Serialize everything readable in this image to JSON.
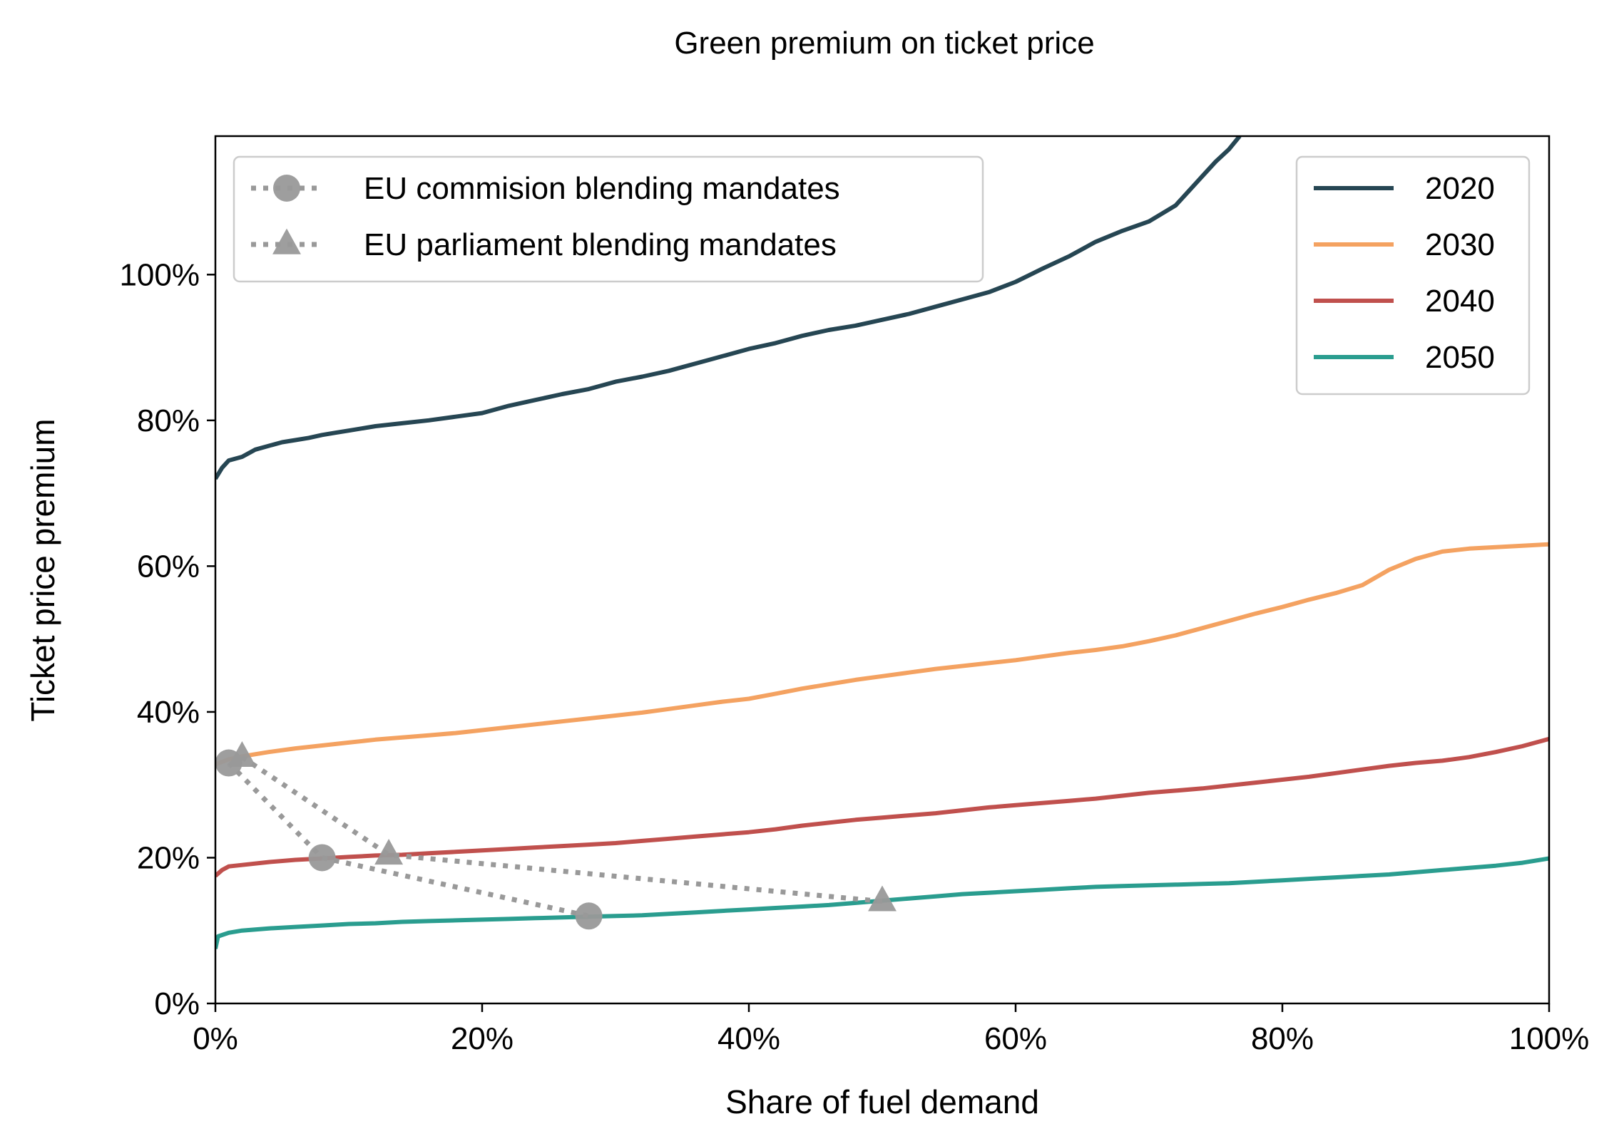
{
  "chart_data": {
    "type": "line",
    "title": "Green premium on ticket price",
    "xlabel": "Share of fuel demand",
    "ylabel": "Ticket price premium",
    "xlim": [
      0,
      100
    ],
    "ylim": [
      0,
      119
    ],
    "x_unit": "%",
    "y_unit": "%",
    "xticks": [
      0,
      20,
      40,
      60,
      80,
      100
    ],
    "yticks": [
      0,
      20,
      40,
      60,
      80,
      100
    ],
    "xtick_labels": [
      "0%",
      "20%",
      "40%",
      "60%",
      "80%",
      "100%"
    ],
    "ytick_labels": [
      "0%",
      "20%",
      "40%",
      "60%",
      "80%",
      "100%"
    ],
    "grid": false,
    "series": [
      {
        "name": "2020",
        "color": "#264653",
        "style": "solid",
        "points": [
          [
            0,
            72
          ],
          [
            0.5,
            73.5
          ],
          [
            1,
            74.5
          ],
          [
            2,
            75
          ],
          [
            3,
            76
          ],
          [
            4,
            76.5
          ],
          [
            5,
            77
          ],
          [
            6,
            77.3
          ],
          [
            7,
            77.6
          ],
          [
            8,
            78
          ],
          [
            9,
            78.3
          ],
          [
            10,
            78.6
          ],
          [
            12,
            79.2
          ],
          [
            14,
            79.6
          ],
          [
            16,
            80
          ],
          [
            18,
            80.5
          ],
          [
            20,
            81
          ],
          [
            22,
            82
          ],
          [
            24,
            82.8
          ],
          [
            26,
            83.6
          ],
          [
            28,
            84.3
          ],
          [
            30,
            85.3
          ],
          [
            32,
            86
          ],
          [
            34,
            86.8
          ],
          [
            36,
            87.8
          ],
          [
            38,
            88.8
          ],
          [
            40,
            89.8
          ],
          [
            42,
            90.6
          ],
          [
            44,
            91.6
          ],
          [
            46,
            92.4
          ],
          [
            48,
            93
          ],
          [
            50,
            93.8
          ],
          [
            52,
            94.6
          ],
          [
            54,
            95.6
          ],
          [
            56,
            96.6
          ],
          [
            58,
            97.6
          ],
          [
            60,
            99
          ],
          [
            62,
            100.8
          ],
          [
            64,
            102.5
          ],
          [
            66,
            104.5
          ],
          [
            68,
            106
          ],
          [
            70,
            107.3
          ],
          [
            72,
            109.5
          ],
          [
            73,
            111.5
          ],
          [
            74,
            113.5
          ],
          [
            75,
            115.5
          ],
          [
            76,
            117.2
          ],
          [
            76.8,
            119
          ]
        ]
      },
      {
        "name": "2030",
        "color": "#f4a261",
        "style": "solid",
        "points": [
          [
            0,
            32.8
          ],
          [
            1,
            33.5
          ],
          [
            2,
            33.9
          ],
          [
            4,
            34.5
          ],
          [
            6,
            35
          ],
          [
            8,
            35.4
          ],
          [
            10,
            35.8
          ],
          [
            12,
            36.2
          ],
          [
            14,
            36.5
          ],
          [
            16,
            36.8
          ],
          [
            18,
            37.1
          ],
          [
            20,
            37.5
          ],
          [
            22,
            37.9
          ],
          [
            24,
            38.3
          ],
          [
            26,
            38.7
          ],
          [
            28,
            39.1
          ],
          [
            30,
            39.5
          ],
          [
            32,
            39.9
          ],
          [
            34,
            40.4
          ],
          [
            36,
            40.9
          ],
          [
            38,
            41.4
          ],
          [
            40,
            41.8
          ],
          [
            42,
            42.5
          ],
          [
            44,
            43.2
          ],
          [
            46,
            43.8
          ],
          [
            48,
            44.4
          ],
          [
            50,
            44.9
          ],
          [
            52,
            45.4
          ],
          [
            54,
            45.9
          ],
          [
            56,
            46.3
          ],
          [
            58,
            46.7
          ],
          [
            60,
            47.1
          ],
          [
            62,
            47.6
          ],
          [
            64,
            48.1
          ],
          [
            66,
            48.5
          ],
          [
            68,
            49
          ],
          [
            70,
            49.7
          ],
          [
            72,
            50.5
          ],
          [
            74,
            51.5
          ],
          [
            76,
            52.5
          ],
          [
            78,
            53.5
          ],
          [
            80,
            54.4
          ],
          [
            82,
            55.4
          ],
          [
            84,
            56.3
          ],
          [
            86,
            57.4
          ],
          [
            88,
            59.5
          ],
          [
            90,
            61
          ],
          [
            92,
            62
          ],
          [
            94,
            62.4
          ],
          [
            96,
            62.6
          ],
          [
            98,
            62.8
          ],
          [
            100,
            63
          ]
        ]
      },
      {
        "name": "2040",
        "color": "#c0504d",
        "style": "solid",
        "points": [
          [
            0,
            17.5
          ],
          [
            0.5,
            18.3
          ],
          [
            1,
            18.8
          ],
          [
            2,
            19
          ],
          [
            4,
            19.4
          ],
          [
            6,
            19.7
          ],
          [
            8,
            19.9
          ],
          [
            10,
            20.1
          ],
          [
            12,
            20.3
          ],
          [
            14,
            20.4
          ],
          [
            16,
            20.6
          ],
          [
            18,
            20.8
          ],
          [
            20,
            21
          ],
          [
            22,
            21.2
          ],
          [
            24,
            21.4
          ],
          [
            26,
            21.6
          ],
          [
            28,
            21.8
          ],
          [
            30,
            22
          ],
          [
            32,
            22.3
          ],
          [
            34,
            22.6
          ],
          [
            36,
            22.9
          ],
          [
            38,
            23.2
          ],
          [
            40,
            23.5
          ],
          [
            42,
            23.9
          ],
          [
            44,
            24.4
          ],
          [
            46,
            24.8
          ],
          [
            48,
            25.2
          ],
          [
            50,
            25.5
          ],
          [
            52,
            25.8
          ],
          [
            54,
            26.1
          ],
          [
            56,
            26.5
          ],
          [
            58,
            26.9
          ],
          [
            60,
            27.2
          ],
          [
            62,
            27.5
          ],
          [
            64,
            27.8
          ],
          [
            66,
            28.1
          ],
          [
            68,
            28.5
          ],
          [
            70,
            28.9
          ],
          [
            72,
            29.2
          ],
          [
            74,
            29.5
          ],
          [
            76,
            29.9
          ],
          [
            78,
            30.3
          ],
          [
            80,
            30.7
          ],
          [
            82,
            31.1
          ],
          [
            84,
            31.6
          ],
          [
            86,
            32.1
          ],
          [
            88,
            32.6
          ],
          [
            90,
            33
          ],
          [
            92,
            33.3
          ],
          [
            94,
            33.8
          ],
          [
            96,
            34.5
          ],
          [
            98,
            35.3
          ],
          [
            100,
            36.3
          ]
        ]
      },
      {
        "name": "2050",
        "color": "#2a9d8f",
        "style": "solid",
        "points": [
          [
            0,
            7.5
          ],
          [
            0.2,
            9.2
          ],
          [
            1,
            9.7
          ],
          [
            2,
            10
          ],
          [
            4,
            10.3
          ],
          [
            6,
            10.5
          ],
          [
            8,
            10.7
          ],
          [
            10,
            10.9
          ],
          [
            12,
            11
          ],
          [
            14,
            11.2
          ],
          [
            16,
            11.3
          ],
          [
            18,
            11.4
          ],
          [
            20,
            11.5
          ],
          [
            22,
            11.6
          ],
          [
            24,
            11.7
          ],
          [
            26,
            11.8
          ],
          [
            28,
            11.9
          ],
          [
            30,
            12
          ],
          [
            32,
            12.1
          ],
          [
            34,
            12.3
          ],
          [
            36,
            12.5
          ],
          [
            38,
            12.7
          ],
          [
            40,
            12.9
          ],
          [
            42,
            13.1
          ],
          [
            44,
            13.3
          ],
          [
            46,
            13.5
          ],
          [
            48,
            13.8
          ],
          [
            50,
            14.1
          ],
          [
            52,
            14.4
          ],
          [
            54,
            14.7
          ],
          [
            56,
            15
          ],
          [
            58,
            15.2
          ],
          [
            60,
            15.4
          ],
          [
            62,
            15.6
          ],
          [
            64,
            15.8
          ],
          [
            66,
            16
          ],
          [
            68,
            16.1
          ],
          [
            70,
            16.2
          ],
          [
            72,
            16.3
          ],
          [
            74,
            16.4
          ],
          [
            76,
            16.5
          ],
          [
            78,
            16.7
          ],
          [
            80,
            16.9
          ],
          [
            82,
            17.1
          ],
          [
            84,
            17.3
          ],
          [
            86,
            17.5
          ],
          [
            88,
            17.7
          ],
          [
            90,
            18
          ],
          [
            92,
            18.3
          ],
          [
            94,
            18.6
          ],
          [
            96,
            18.9
          ],
          [
            98,
            19.3
          ],
          [
            100,
            19.9
          ]
        ]
      },
      {
        "name": "EU commision blending mandates",
        "color": "#999999",
        "style": "dotted",
        "marker": "circle",
        "points": [
          [
            1,
            33
          ],
          [
            8,
            20
          ],
          [
            28,
            12
          ]
        ]
      },
      {
        "name": "EU parliament blending mandates",
        "color": "#999999",
        "style": "dotted",
        "marker": "triangle",
        "points": [
          [
            2,
            33.8
          ],
          [
            13,
            20.4
          ],
          [
            50,
            14
          ]
        ]
      }
    ],
    "legends": [
      {
        "placement": "upper-left",
        "entries": [
          "EU commision blending mandates",
          "EU parliament blending mandates"
        ]
      },
      {
        "placement": "upper-right",
        "entries": [
          "2020",
          "2030",
          "2040",
          "2050"
        ]
      }
    ]
  }
}
